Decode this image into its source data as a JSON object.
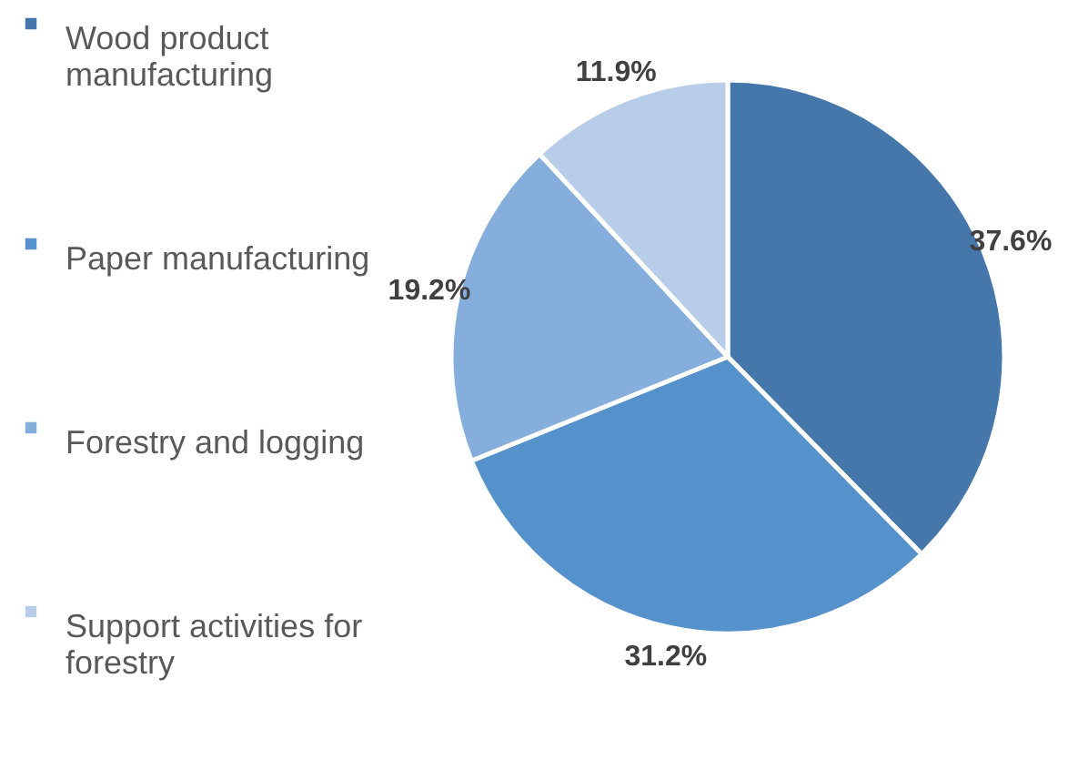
{
  "chart_data": {
    "type": "pie",
    "categories": [
      "Wood product manufacturing",
      "Paper manufacturing",
      "Forestry and logging",
      "Support activities for forestry"
    ],
    "values": [
      37.6,
      31.2,
      19.2,
      11.9
    ],
    "colors": [
      "#4677aa",
      "#5591cb",
      "#86aedd",
      "#b8cde8"
    ],
    "value_labels": [
      "37.6%",
      "31.2%",
      "19.2%",
      "11.9%"
    ],
    "legend": "left"
  }
}
